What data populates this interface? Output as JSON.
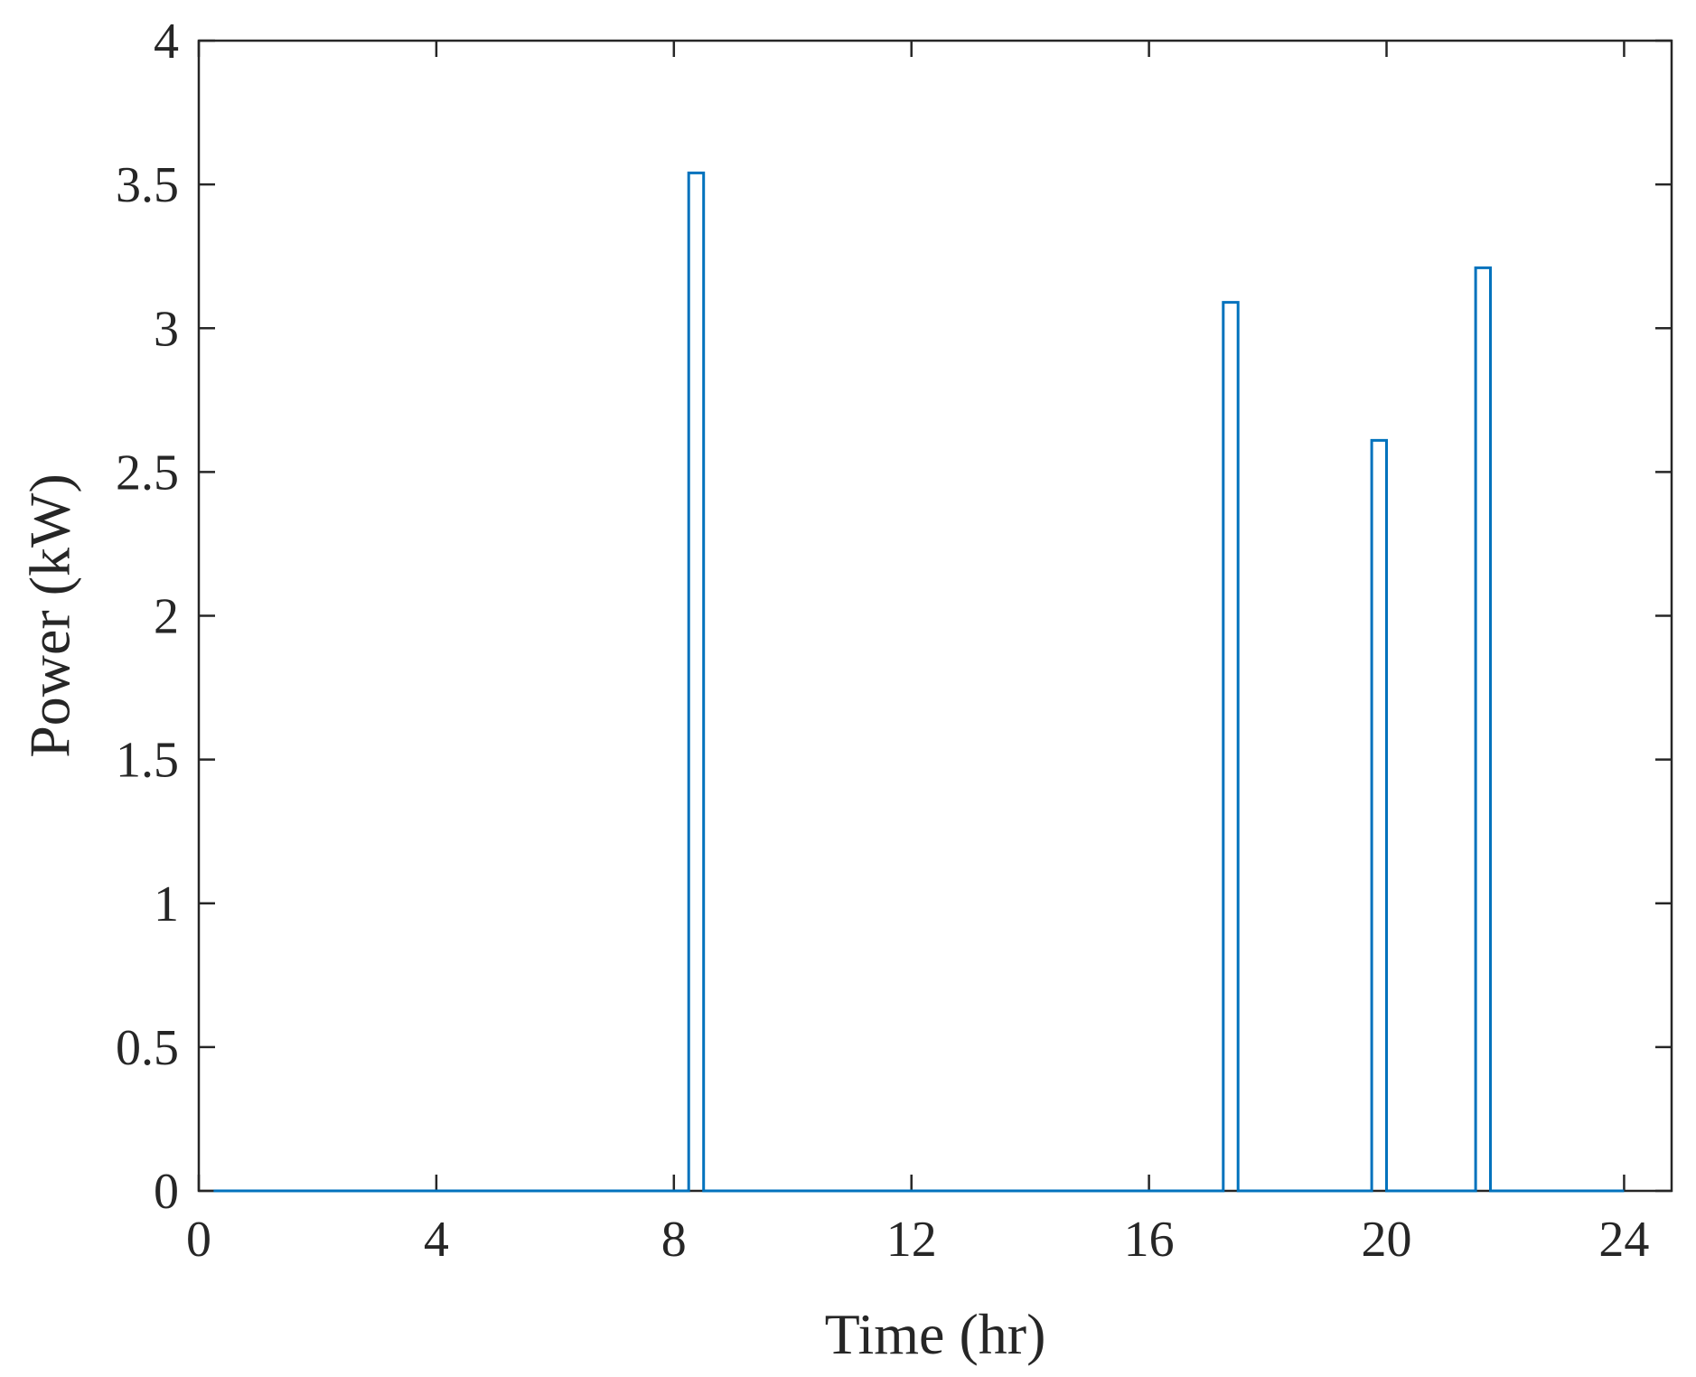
{
  "chart_data": {
    "type": "line",
    "title": "",
    "xlabel": "Time (hr)",
    "ylabel": "Power (kW)",
    "xlim": [
      0,
      24.8
    ],
    "ylim": [
      0,
      4
    ],
    "xticks": [
      0,
      4,
      8,
      12,
      16,
      20,
      24
    ],
    "yticks": [
      0,
      0.5,
      1,
      1.5,
      2,
      2.5,
      3,
      3.5,
      4
    ],
    "xtick_labels": [
      "0",
      "4",
      "8",
      "12",
      "16",
      "20",
      "24"
    ],
    "ytick_labels": [
      "0",
      "0.5",
      "1",
      "1.5",
      "2",
      "2.5",
      "3",
      "3.5",
      "4"
    ],
    "grid": false,
    "legend": "none",
    "line_color": "#0072BD",
    "series": [
      {
        "x": [
          0.25,
          8.25,
          8.25,
          8.5,
          8.5,
          17.25,
          17.25,
          17.5,
          17.5,
          19.75,
          19.75,
          20.0,
          20.0,
          21.5,
          21.5,
          21.75,
          21.75,
          24.0
        ],
        "y": [
          0,
          0,
          3.54,
          3.54,
          0,
          0,
          3.09,
          3.09,
          0,
          0,
          2.61,
          2.61,
          0,
          0,
          3.21,
          3.21,
          0,
          0
        ]
      }
    ]
  }
}
